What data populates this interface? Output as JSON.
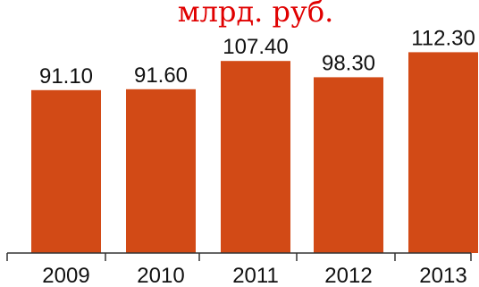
{
  "chart_data": {
    "type": "bar",
    "title": "млрд. руб.",
    "categories": [
      "2009",
      "2010",
      "2011",
      "2012",
      "2013"
    ],
    "values": [
      91.1,
      91.6,
      107.4,
      98.3,
      112.3
    ],
    "value_labels": [
      "91.10",
      "91.60",
      "107.40",
      "98.30",
      "112.30"
    ],
    "xlabel": "",
    "ylabel": "",
    "ylim": [
      0,
      125
    ],
    "grid": false,
    "legend": "none",
    "colors": {
      "bar": "#d24a16",
      "title": "#e00000",
      "axis": "#333333",
      "text": "#111111"
    }
  }
}
